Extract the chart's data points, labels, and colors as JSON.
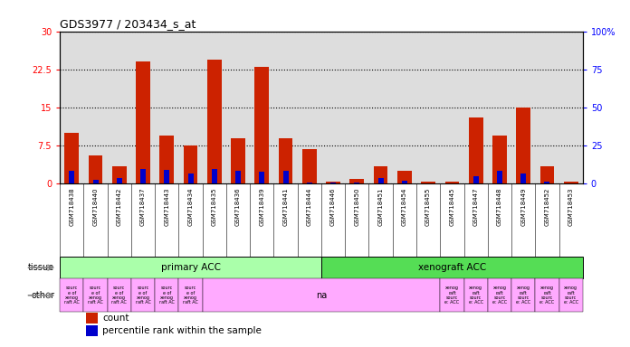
{
  "title": "GDS3977 / 203434_s_at",
  "samples": [
    "GSM718438",
    "GSM718440",
    "GSM718442",
    "GSM718437",
    "GSM718443",
    "GSM718434",
    "GSM718435",
    "GSM718436",
    "GSM718439",
    "GSM718441",
    "GSM718444",
    "GSM718446",
    "GSM718450",
    "GSM718451",
    "GSM718454",
    "GSM718455",
    "GSM718445",
    "GSM718447",
    "GSM718448",
    "GSM718449",
    "GSM718452",
    "GSM718453"
  ],
  "counts": [
    10.0,
    5.5,
    3.5,
    24.0,
    9.5,
    7.5,
    24.5,
    9.0,
    23.0,
    9.0,
    6.8,
    0.5,
    1.0,
    3.5,
    2.5,
    0.4,
    0.5,
    13.0,
    9.5,
    15.0,
    3.5,
    0.5
  ],
  "percentiles": [
    8.5,
    2.5,
    3.5,
    9.5,
    9.0,
    6.5,
    9.5,
    8.5,
    8.0,
    8.5,
    0.5,
    0.5,
    1.0,
    3.5,
    2.0,
    0.3,
    0.3,
    5.0,
    8.5,
    6.5,
    1.5,
    0.3
  ],
  "bar_color": "#CC2200",
  "pct_color": "#0000CC",
  "left_ylim": [
    0,
    30
  ],
  "right_ylim": [
    0,
    100
  ],
  "left_yticks": [
    0,
    7.5,
    15,
    22.5,
    30
  ],
  "left_yticklabels": [
    "0",
    "7.5",
    "15",
    "22.5",
    "30"
  ],
  "right_yticks": [
    0,
    25,
    50,
    75,
    100
  ],
  "right_yticklabels": [
    "0",
    "25",
    "50",
    "75",
    "100%"
  ],
  "primary_count": 11,
  "tissue_primary_label": "primary ACC",
  "tissue_xenograft_label": "xenograft ACC",
  "tissue_primary_color": "#AAFFAA",
  "tissue_xenograft_color": "#55DD55",
  "other_color": "#FFAAFF",
  "other_na_label": "na",
  "legend_count_label": "count",
  "legend_pct_label": "percentile rank within the sample",
  "chart_bg_color": "#DDDDDD",
  "xlabel_bg_color": "#CCCCCC"
}
